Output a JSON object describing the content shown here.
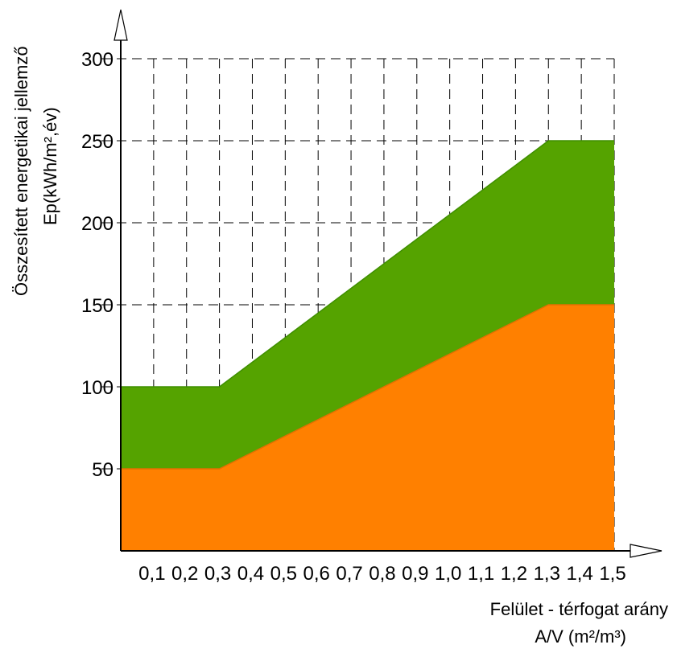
{
  "chart_data": {
    "type": "area",
    "x": [
      0,
      0.3,
      1.3,
      1.5
    ],
    "series": [
      {
        "values": [
          50,
          50,
          150,
          150
        ],
        "color": "#ff8000"
      },
      {
        "values": [
          100,
          100,
          250,
          250
        ],
        "color": "#55a300"
      }
    ],
    "xlim": [
      0,
      1.5
    ],
    "ylim": [
      0,
      300
    ],
    "x_tick_labels": [
      "0,1",
      "0,2",
      "0,3",
      "0,4",
      "0,5",
      "0,6",
      "0,7",
      "0,8",
      "0,9",
      "1,0",
      "1,1",
      "1,2",
      "1,3",
      "1,4",
      "1,5"
    ],
    "x_ticks": [
      0.1,
      0.2,
      0.3,
      0.4,
      0.5,
      0.6,
      0.7,
      0.8,
      0.9,
      1.0,
      1.1,
      1.2,
      1.3,
      1.4,
      1.5
    ],
    "y_tick_labels": [
      "50",
      "100",
      "150",
      "200",
      "250",
      "300"
    ],
    "y_ticks": [
      50,
      100,
      150,
      200,
      250,
      300
    ],
    "xlabel": [
      "Felület - térfogat arány",
      "A/V (m²/m³)"
    ],
    "ylabel": [
      "Összesített energetikai jellemző",
      "Ep(kWh/m²,év)"
    ],
    "grid": true
  }
}
